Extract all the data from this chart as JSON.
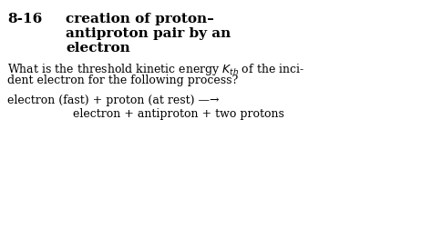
{
  "background_color": "#ffffff",
  "fig_width": 4.74,
  "fig_height": 2.63,
  "dpi": 100,
  "problem_number": "8-16",
  "title_line1": "creation of proton–",
  "title_line2": "antiproton pair by an",
  "title_line3": "electron",
  "question_line1": "What is the threshold kinetic energy ",
  "question_kth": "$K_{th}$",
  "question_line1_end": " of the inci-",
  "question_line2": "dent electron for the following process?",
  "reaction_line1": "electron (fast) + proton (at rest) —→",
  "reaction_line2": "electron + antiproton + two protons",
  "title_fontsize": 11,
  "body_fontsize": 9,
  "num_fontsize": 11
}
